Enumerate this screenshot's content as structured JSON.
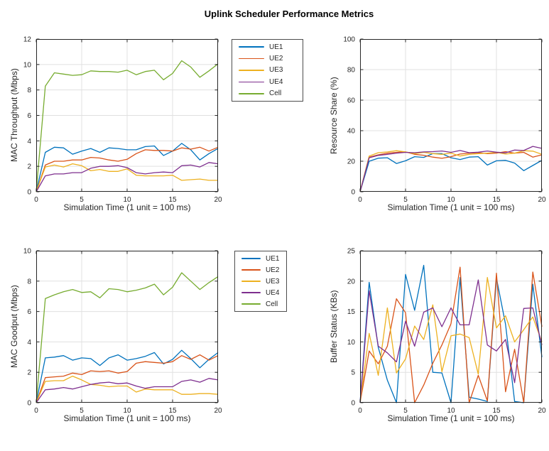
{
  "figure_title": "Uplink Scheduler Performance Metrics",
  "colors": {
    "ue1": "#0072BD",
    "ue2": "#D95319",
    "ue3": "#EDB120",
    "ue4": "#7E2F8E",
    "cell": "#77AC30",
    "axis": "#262626",
    "grid": "#e0e0e0"
  },
  "chart_data": [
    {
      "id": "mac-throughput",
      "type": "line",
      "xlabel": "Simulation Time (1 unit = 100 ms)",
      "ylabel": "MAC Throughput (Mbps)",
      "xlim": [
        0,
        20
      ],
      "ylim": [
        0,
        12
      ],
      "xticks": [
        0,
        5,
        10,
        15,
        20
      ],
      "yticks": [
        0,
        2,
        4,
        6,
        8,
        10,
        12
      ],
      "grid": true,
      "legend": true,
      "x": [
        0,
        1,
        2,
        3,
        4,
        5,
        6,
        7,
        8,
        9,
        10,
        11,
        12,
        13,
        14,
        15,
        16,
        17,
        18,
        19,
        20
      ],
      "series": [
        {
          "name": "UE1",
          "color": "#0072BD",
          "values": [
            0,
            3.1,
            3.5,
            3.45,
            2.95,
            3.2,
            3.4,
            3.1,
            3.45,
            3.4,
            3.3,
            3.3,
            3.55,
            3.6,
            2.85,
            3.2,
            3.8,
            3.3,
            2.5,
            3.0,
            3.4
          ]
        },
        {
          "name": "UE2",
          "color": "#D95319",
          "values": [
            0,
            2.1,
            2.4,
            2.4,
            2.5,
            2.5,
            2.7,
            2.65,
            2.5,
            2.4,
            2.55,
            3.0,
            3.3,
            3.25,
            3.25,
            3.2,
            3.45,
            3.35,
            3.5,
            3.2,
            3.5
          ]
        },
        {
          "name": "UE3",
          "color": "#EDB120",
          "values": [
            0,
            1.95,
            2.1,
            1.95,
            2.2,
            2.05,
            1.65,
            1.75,
            1.6,
            1.6,
            1.8,
            1.3,
            1.25,
            1.25,
            1.25,
            1.3,
            0.9,
            0.95,
            1.0,
            0.9,
            0.9
          ]
        },
        {
          "name": "UE4",
          "color": "#7E2F8E",
          "values": [
            0,
            1.25,
            1.4,
            1.4,
            1.5,
            1.5,
            1.85,
            2.0,
            2.0,
            2.05,
            1.9,
            1.5,
            1.4,
            1.5,
            1.55,
            1.5,
            2.05,
            2.1,
            1.95,
            2.3,
            2.2
          ]
        },
        {
          "name": "Cell",
          "color": "#77AC30",
          "values": [
            0,
            8.3,
            9.35,
            9.25,
            9.15,
            9.2,
            9.5,
            9.45,
            9.45,
            9.4,
            9.55,
            9.2,
            9.45,
            9.55,
            8.8,
            9.3,
            10.3,
            9.8,
            9.0,
            9.5,
            10.05
          ]
        }
      ]
    },
    {
      "id": "resource-share",
      "type": "line",
      "xlabel": "Simulation Time (1 unit = 100 ms)",
      "ylabel": "Resource Share (%)",
      "xlim": [
        0,
        20
      ],
      "ylim": [
        0,
        100
      ],
      "xticks": [
        0,
        5,
        10,
        15,
        20
      ],
      "yticks": [
        0,
        20,
        40,
        60,
        80,
        100
      ],
      "grid": true,
      "legend": false,
      "x": [
        0,
        1,
        2,
        3,
        4,
        5,
        6,
        7,
        8,
        9,
        10,
        11,
        12,
        13,
        14,
        15,
        16,
        17,
        18,
        19,
        20
      ],
      "series": [
        {
          "name": "UE1",
          "color": "#0072BD",
          "values": [
            0,
            20,
            22,
            22.3,
            18.5,
            20.3,
            23,
            22.5,
            25,
            25,
            22.3,
            21.1,
            22.7,
            23,
            17.5,
            20.3,
            20.6,
            18.8,
            13.8,
            17.2,
            20.6
          ]
        },
        {
          "name": "UE2",
          "color": "#D95319",
          "values": [
            0,
            22.7,
            24.2,
            25.3,
            25.8,
            26.1,
            24.5,
            23.9,
            22.7,
            21.9,
            23,
            24.7,
            25.3,
            25.6,
            25,
            25.3,
            26.3,
            25.3,
            25.8,
            22.7,
            24.2
          ]
        },
        {
          "name": "UE3",
          "color": "#EDB120",
          "values": [
            0,
            23.4,
            25.6,
            26.1,
            26.9,
            26.1,
            25,
            25.8,
            25,
            24.5,
            25.3,
            23.4,
            24.5,
            25,
            25.3,
            25.8,
            24.7,
            25.3,
            26.9,
            26.6,
            24.5
          ]
        },
        {
          "name": "UE4",
          "color": "#7E2F8E",
          "values": [
            0,
            22.3,
            23.8,
            24.5,
            25.3,
            25.8,
            25.6,
            26.1,
            26.3,
            26.7,
            25.8,
            27,
            25.6,
            25.9,
            26.7,
            25.9,
            25.5,
            27.3,
            27,
            29.7,
            28.4
          ]
        }
      ]
    },
    {
      "id": "mac-goodput",
      "type": "line",
      "xlabel": "Simulation Time (1 unit = 100 ms)",
      "ylabel": "MAC Goodput (Mbps)",
      "xlim": [
        0,
        20
      ],
      "ylim": [
        0,
        10
      ],
      "xticks": [
        0,
        5,
        10,
        15,
        20
      ],
      "yticks": [
        0,
        2,
        4,
        6,
        8,
        10
      ],
      "grid": true,
      "legend": true,
      "x": [
        0,
        1,
        2,
        3,
        4,
        5,
        6,
        7,
        8,
        9,
        10,
        11,
        12,
        13,
        14,
        15,
        16,
        17,
        18,
        19,
        20
      ],
      "series": [
        {
          "name": "UE1",
          "color": "#0072BD",
          "values": [
            0,
            2.95,
            3.0,
            3.1,
            2.8,
            2.95,
            2.9,
            2.45,
            2.95,
            3.15,
            2.8,
            2.9,
            3.05,
            3.3,
            2.55,
            2.85,
            3.45,
            2.9,
            2.3,
            2.85,
            3.3
          ]
        },
        {
          "name": "UE2",
          "color": "#D95319",
          "values": [
            0,
            1.65,
            1.7,
            1.75,
            1.95,
            1.85,
            2.1,
            2.05,
            2.1,
            1.95,
            2.05,
            2.6,
            2.7,
            2.65,
            2.6,
            2.7,
            3.1,
            2.85,
            3.15,
            2.8,
            3.1
          ]
        },
        {
          "name": "UE3",
          "color": "#EDB120",
          "values": [
            0,
            1.4,
            1.45,
            1.45,
            1.75,
            1.5,
            1.2,
            1.15,
            1.05,
            1.1,
            1.1,
            0.7,
            0.9,
            0.85,
            0.85,
            0.85,
            0.55,
            0.55,
            0.6,
            0.6,
            0.55
          ]
        },
        {
          "name": "UE4",
          "color": "#7E2F8E",
          "values": [
            0,
            0.85,
            0.9,
            1.0,
            0.9,
            1.05,
            1.2,
            1.3,
            1.35,
            1.25,
            1.3,
            1.1,
            0.95,
            1.05,
            1.05,
            1.05,
            1.4,
            1.5,
            1.35,
            1.6,
            1.5
          ]
        },
        {
          "name": "Cell",
          "color": "#77AC30",
          "values": [
            0,
            6.85,
            7.1,
            7.3,
            7.45,
            7.25,
            7.3,
            6.9,
            7.5,
            7.45,
            7.3,
            7.4,
            7.55,
            7.8,
            7.1,
            7.6,
            8.55,
            8.0,
            7.45,
            7.9,
            8.3
          ]
        }
      ]
    },
    {
      "id": "buffer-status",
      "type": "line",
      "xlabel": "Simulation Time (1 unit = 100 ms)",
      "ylabel": "Buffer Status (KBs)",
      "xlim": [
        0,
        20
      ],
      "ylim": [
        0,
        25
      ],
      "xticks": [
        0,
        5,
        10,
        15,
        20
      ],
      "yticks": [
        0,
        5,
        10,
        15,
        20,
        25
      ],
      "grid": true,
      "legend": false,
      "x": [
        0,
        1,
        2,
        3,
        4,
        5,
        6,
        7,
        8,
        9,
        10,
        11,
        12,
        13,
        14,
        15,
        16,
        17,
        18,
        19,
        20
      ],
      "series": [
        {
          "name": "UE1",
          "color": "#0072BD",
          "values": [
            0,
            19.8,
            9.1,
            3.7,
            0,
            21.1,
            15.2,
            22.6,
            5.0,
            4.9,
            0,
            20.6,
            0.9,
            0.6,
            0.2,
            20.5,
            12.9,
            0.2,
            0,
            19.5,
            7.5
          ]
        },
        {
          "name": "UE2",
          "color": "#D95319",
          "values": [
            0,
            8.5,
            6.4,
            9.3,
            17.1,
            14.8,
            0,
            2.9,
            6.5,
            9.5,
            13.0,
            22.3,
            0,
            4.5,
            0.3,
            21.3,
            1.8,
            8.8,
            0,
            21.5,
            12.5
          ]
        },
        {
          "name": "UE3",
          "color": "#EDB120",
          "values": [
            0,
            11.4,
            4.5,
            15.6,
            4.9,
            7.2,
            12.6,
            10.4,
            16.1,
            5.1,
            11.0,
            11.3,
            10.7,
            4.7,
            20.6,
            12.3,
            14.3,
            10.0,
            12.0,
            14.1,
            10.0
          ]
        },
        {
          "name": "UE4",
          "color": "#7E2F8E",
          "values": [
            0,
            18.4,
            9.3,
            8.2,
            6.7,
            13.4,
            9.3,
            14.9,
            15.6,
            12.5,
            15.6,
            12.8,
            12.8,
            20.2,
            9.5,
            8.5,
            10.4,
            3.3,
            15.5,
            15.6,
            9.5
          ]
        }
      ]
    }
  ]
}
